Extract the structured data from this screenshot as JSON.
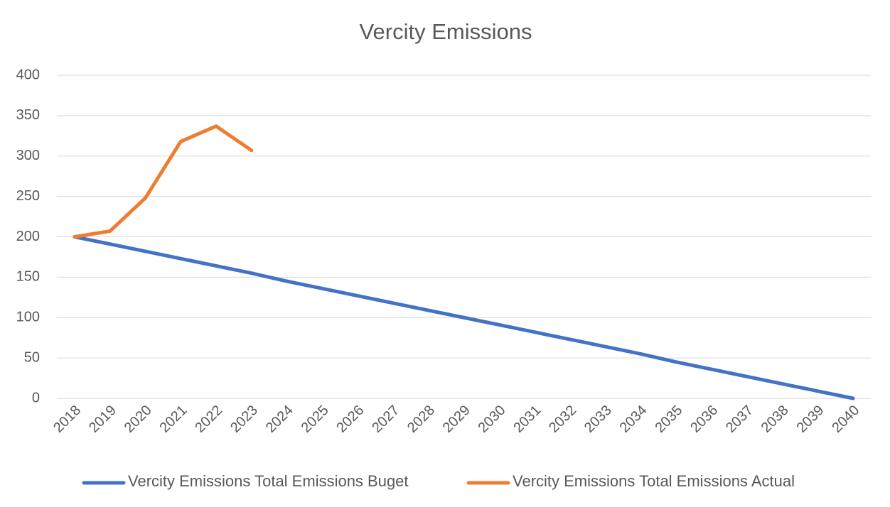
{
  "chart_data": {
    "type": "line",
    "title": "Vercity Emissions",
    "categories": [
      "2018",
      "2019",
      "2020",
      "2021",
      "2022",
      "2023",
      "2024",
      "2025",
      "2026",
      "2027",
      "2028",
      "2029",
      "2030",
      "2031",
      "2032",
      "2033",
      "2034",
      "2035",
      "2036",
      "2037",
      "2038",
      "2039",
      "2040"
    ],
    "series": [
      {
        "name": "Vercity Emissions Total Emissions Buget",
        "color": "#4472c4",
        "values": [
          200,
          191,
          182,
          173,
          164,
          155,
          145,
          136,
          127,
          118,
          109,
          100,
          91,
          82,
          73,
          64,
          55,
          45,
          36,
          27,
          18,
          9,
          0
        ]
      },
      {
        "name": "Vercity Emissions Total Emissions Actual",
        "color": "#ed7d31",
        "values": [
          200,
          207,
          248,
          318,
          337,
          307,
          null,
          null,
          null,
          null,
          null,
          null,
          null,
          null,
          null,
          null,
          null,
          null,
          null,
          null,
          null,
          null,
          null
        ]
      }
    ],
    "ylim": [
      0,
      400
    ],
    "yticks": [
      0,
      50,
      100,
      150,
      200,
      250,
      300,
      350,
      400
    ],
    "grid": true,
    "legend": "bottom"
  }
}
